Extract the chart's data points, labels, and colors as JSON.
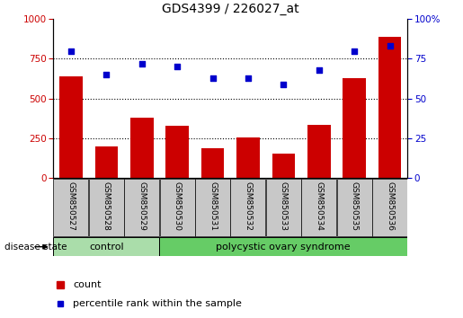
{
  "title": "GDS4399 / 226027_at",
  "samples": [
    "GSM850527",
    "GSM850528",
    "GSM850529",
    "GSM850530",
    "GSM850531",
    "GSM850532",
    "GSM850533",
    "GSM850534",
    "GSM850535",
    "GSM850536"
  ],
  "counts": [
    640,
    200,
    380,
    330,
    185,
    255,
    155,
    335,
    630,
    890
  ],
  "percentiles": [
    80,
    65,
    72,
    70,
    63,
    63,
    59,
    68,
    80,
    83
  ],
  "ylim_left": [
    0,
    1000
  ],
  "ylim_right": [
    0,
    100
  ],
  "yticks_left": [
    0,
    250,
    500,
    750,
    1000
  ],
  "yticks_right": [
    0,
    25,
    50,
    75,
    100
  ],
  "bar_color": "#cc0000",
  "dot_color": "#0000cc",
  "grid_lines": [
    250,
    500,
    750
  ],
  "control_count": 3,
  "n_samples": 10,
  "control_label": "control",
  "polycystic_label": "polycystic ovary syndrome",
  "disease_state_label": "disease state",
  "legend_count_label": "count",
  "legend_percentile_label": "percentile rank within the sample",
  "control_bg": "#aaddaa",
  "polycystic_bg": "#66cc66",
  "sample_bg": "#c8c8c8",
  "title_fontsize": 10
}
